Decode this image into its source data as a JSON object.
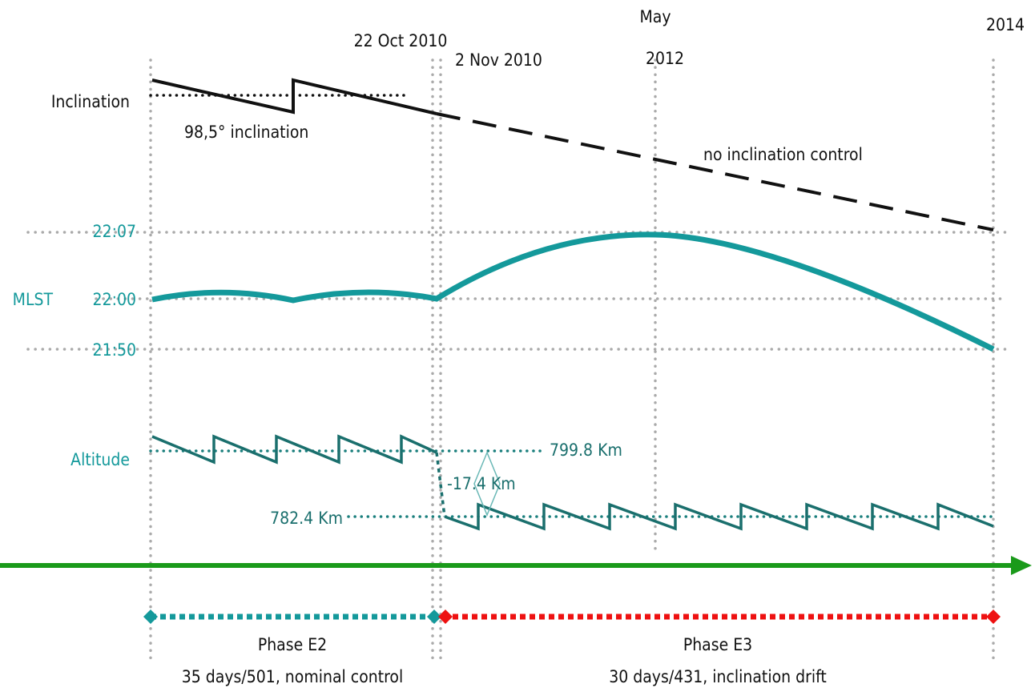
{
  "dates": {
    "start_e3_prev": "22 Oct 2010",
    "start_e3": "2 Nov 2010",
    "mid": [
      "May",
      "2012"
    ],
    "end": "2014"
  },
  "inclination": {
    "label": "Inclination",
    "reference": "98,5° inclination",
    "drift": "no inclination control"
  },
  "mlst": {
    "label": "MLST",
    "levels": [
      "22:07",
      "22:00",
      "21:50"
    ]
  },
  "altitude": {
    "label": "Altitude",
    "upper": "799.8 Km",
    "delta": "-17.4 Km",
    "lower": "782.4 Km"
  },
  "phases": [
    {
      "name": "Phase E2",
      "description": "35 days/501, nominal control"
    },
    {
      "name": "Phase E3",
      "description": "30 days/431, inclination drift"
    }
  ]
}
